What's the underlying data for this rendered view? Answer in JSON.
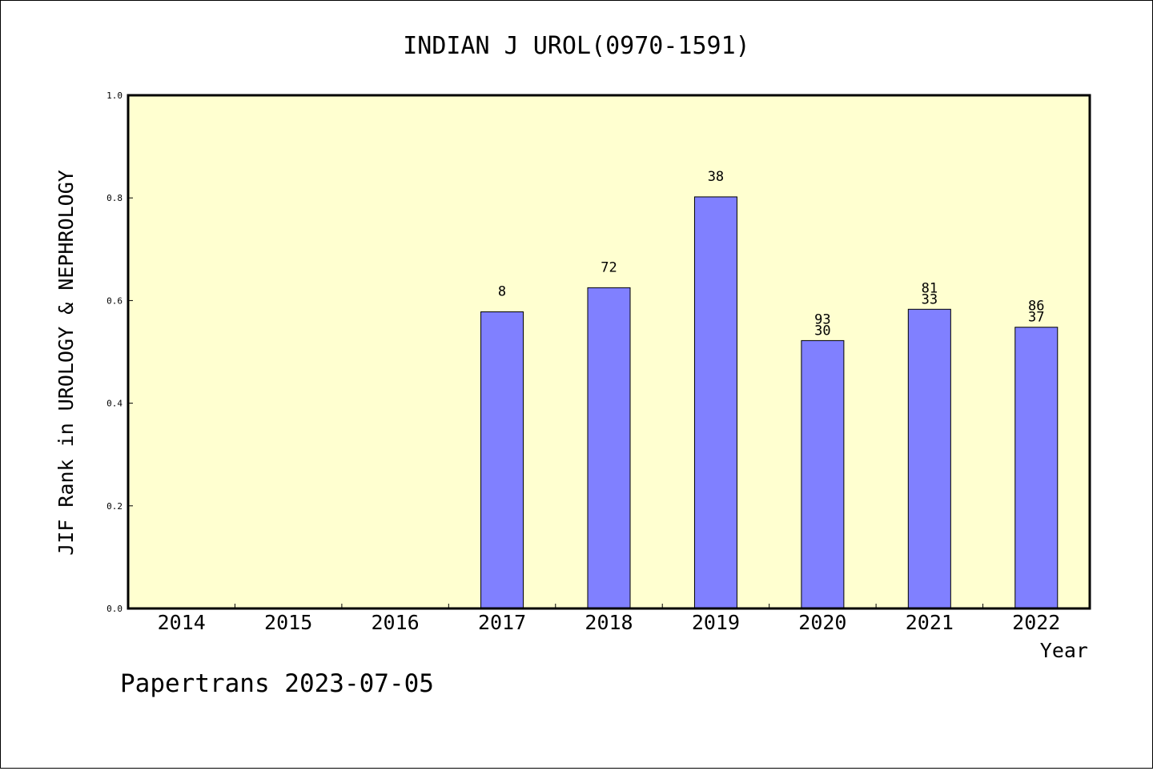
{
  "chart_data": {
    "type": "bar",
    "title": "INDIAN J UROL(0970-1591)",
    "xlabel": "Year",
    "ylabel": "JIF Rank in UROLOGY & NEPHROLOGY",
    "ylim": [
      0.0,
      1.0
    ],
    "yticks": [
      "0.0",
      "0.2",
      "0.4",
      "0.6",
      "0.8",
      "1.0"
    ],
    "categories": [
      "2014",
      "2015",
      "2016",
      "2017",
      "2018",
      "2019",
      "2020",
      "2021",
      "2022"
    ],
    "values": [
      null,
      null,
      null,
      0.578,
      0.625,
      0.802,
      0.522,
      0.583,
      0.548
    ],
    "bar_labels": [
      [],
      [],
      [],
      [
        "8"
      ],
      [
        "72"
      ],
      [
        "38"
      ],
      [
        "93",
        "30"
      ],
      [
        "81",
        "33"
      ],
      [
        "86",
        "37"
      ]
    ],
    "colors": {
      "plot_background": "#ffffd0",
      "bar_fill": "#8080ff",
      "bar_stroke": "#000000"
    },
    "grid": false,
    "legend": "none"
  },
  "footer": {
    "credit": "Papertrans 2023-07-05"
  }
}
